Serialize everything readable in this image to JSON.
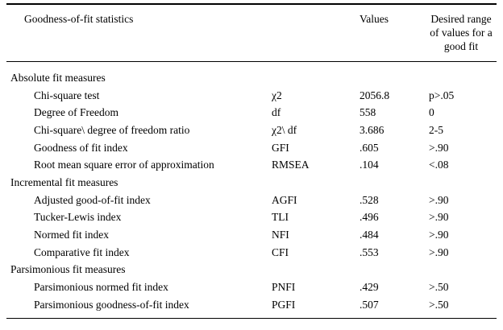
{
  "page": {
    "background": "#ffffff",
    "text_color": "#000000"
  },
  "table": {
    "header": {
      "title": "Goodness-of-fit statistics",
      "values_label": "Values",
      "range_label": "Desired range of values for a good fit"
    },
    "rows": [
      {
        "type": "section",
        "label": "Absolute fit measures"
      },
      {
        "type": "item",
        "label": "Chi-square test",
        "symbol": "χ2",
        "value": "2056.8",
        "range": "p>.05"
      },
      {
        "type": "item",
        "label": "Degree of Freedom",
        "symbol": "df",
        "value": "558",
        "range": "0"
      },
      {
        "type": "item",
        "label": "Chi-square\\ degree of freedom ratio",
        "symbol": "χ2\\ df",
        "value": "3.686",
        "range": "2-5"
      },
      {
        "type": "item",
        "label": "Goodness of fit index",
        "symbol": "GFI",
        "value": ".605",
        "range": ">.90"
      },
      {
        "type": "item",
        "label": "Root mean square error of approximation",
        "symbol": "RMSEA",
        "value": ".104",
        "range": "<.08"
      },
      {
        "type": "section",
        "label": "Incremental fit measures"
      },
      {
        "type": "item",
        "label": "Adjusted good-of-fit index",
        "symbol": "AGFI",
        "value": ".528",
        "range": ">.90"
      },
      {
        "type": "item",
        "label": "Tucker-Lewis index",
        "symbol": "TLI",
        "value": ".496",
        "range": ">.90"
      },
      {
        "type": "item",
        "label": "Normed fit index",
        "symbol": "NFI",
        "value": ".484",
        "range": ">.90"
      },
      {
        "type": "item",
        "label": "Comparative fit index",
        "symbol": "CFI",
        "value": ".553",
        "range": ">.90"
      },
      {
        "type": "section",
        "label": "Parsimonious fit measures"
      },
      {
        "type": "item",
        "label": "Parsimonious normed fit index",
        "symbol": "PNFI",
        "value": ".429",
        "range": ">.50"
      },
      {
        "type": "item",
        "label": "Parsimonious goodness-of-fit index",
        "symbol": "PGFI",
        "value": ".507",
        "range": ">.50"
      }
    ]
  }
}
